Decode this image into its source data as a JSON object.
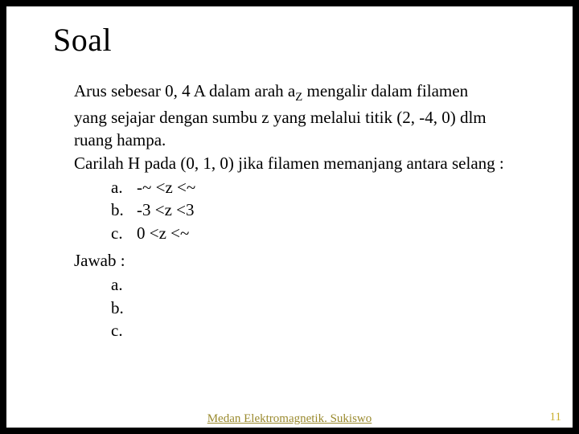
{
  "title": "Soal",
  "problem": {
    "line1_pre": "Arus sebesar 0, 4 A dalam arah a",
    "line1_sub": "Z",
    "line1_post": " mengalir dalam filamen",
    "line2": "yang sejajar dengan sumbu z yang melalui titik (2, -4, 0) dlm",
    "line3": "ruang hampa.",
    "line4": "Carilah H pada (0, 1, 0) jika filamen memanjang antara selang :"
  },
  "options": {
    "a": {
      "letter": "a.",
      "text": "-~ <z <~"
    },
    "b": {
      "letter": "b.",
      "text": "-3 <z <3"
    },
    "c": {
      "letter": "c.",
      "text": "0 <z <~"
    }
  },
  "answer_label": "Jawab :",
  "answers": {
    "a": "a.",
    "b": "b.",
    "c": "c."
  },
  "footer": "Medan Elektromagnetik. Sukiswo",
  "page_number": "11"
}
